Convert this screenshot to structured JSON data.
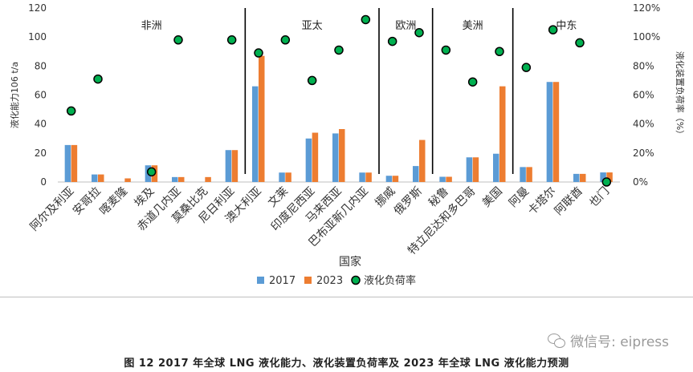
{
  "chart_data": {
    "type": "bar",
    "categories": [
      "阿尔及利亚",
      "安哥拉",
      "喀麦隆",
      "埃及",
      "赤道几内亚",
      "莫桑比克",
      "尼日利亚",
      "澳大利亚",
      "文莱",
      "印度尼西亚",
      "马来西亚",
      "巴布亚新几内亚",
      "挪威",
      "俄罗斯",
      "秘鲁",
      "特立尼达和多巴哥",
      "美国",
      "阿曼",
      "卡塔尔",
      "阿联酋",
      "也门"
    ],
    "series": [
      {
        "name": "2017",
        "type": "bar",
        "axis": "left",
        "color": "#5B9BD5",
        "values": [
          25.5,
          5.2,
          0,
          11.5,
          3.4,
          0,
          22.0,
          66.0,
          6.5,
          30.0,
          33.5,
          6.5,
          4.3,
          11.0,
          3.6,
          17.0,
          19.5,
          10.3,
          69.0,
          5.6,
          6.6
        ]
      },
      {
        "name": "2023",
        "type": "bar",
        "axis": "left",
        "color": "#ED7D31",
        "values": [
          25.5,
          5.2,
          2.5,
          11.5,
          3.4,
          3.4,
          22.0,
          87.0,
          6.5,
          34.0,
          36.5,
          6.5,
          4.3,
          29.0,
          3.6,
          17.0,
          66.0,
          10.3,
          69.0,
          5.6,
          6.6
        ]
      },
      {
        "name": "液化负荷率",
        "type": "scatter",
        "axis": "right",
        "color": "#00B050",
        "values": [
          49,
          71,
          null,
          7,
          98,
          null,
          98,
          89,
          98,
          70,
          91,
          112,
          97,
          103,
          91,
          69,
          90,
          79,
          105,
          96,
          0
        ]
      }
    ],
    "ylabel": "液化能力106 t/a",
    "ylabel_right": "液化装置负荷率（%）",
    "xlabel": "国家",
    "ylim": [
      0,
      120
    ],
    "yticks": [
      "0",
      "20",
      "40",
      "60",
      "80",
      "100",
      "120"
    ],
    "y2lim": [
      0,
      120
    ],
    "y2ticks": [
      "0%",
      "20%",
      "40%",
      "60%",
      "80%",
      "100%",
      "120%"
    ],
    "regions": [
      {
        "label": "非洲",
        "start": 0,
        "end": 6
      },
      {
        "label": "亚太",
        "start": 7,
        "end": 11
      },
      {
        "label": "欧洲",
        "start": 12,
        "end": 13
      },
      {
        "label": "美洲",
        "start": 14,
        "end": 16
      },
      {
        "label": "中东",
        "start": 17,
        "end": 20
      }
    ],
    "legend_position": "bottom",
    "grid": false
  },
  "watermark": {
    "text": "微信号: eipress",
    "icon": "wechat-icon"
  },
  "caption": "图 12   2017 年全球 LNG 液化能力、液化装置负荷率及 2023 年全球 LNG 液化能力预测"
}
